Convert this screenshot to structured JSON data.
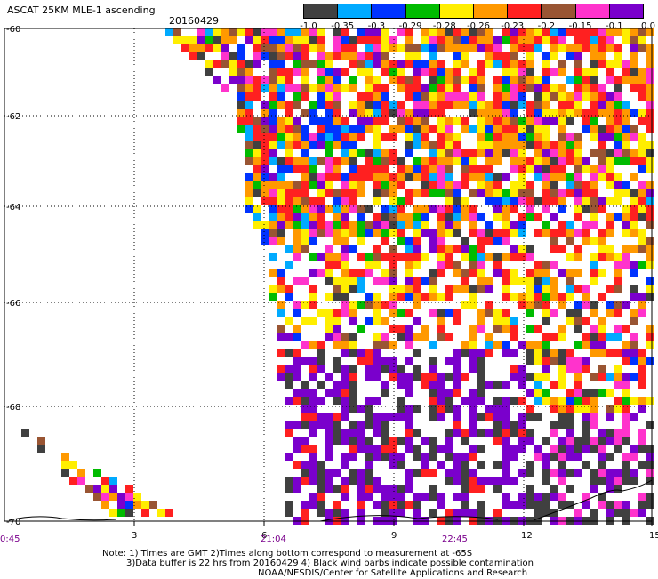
{
  "header": {
    "title": "ASCAT 25KM MLE-1 ascending",
    "date": "20160429"
  },
  "colorbar": {
    "colors": [
      "#404040",
      "#00aaff",
      "#0033ff",
      "#00bb00",
      "#ffee00",
      "#ff9900",
      "#ff2020",
      "#995533",
      "#ff33cc",
      "#7a00cc"
    ],
    "labels": [
      "-1.0",
      "-0.35",
      "-0.3",
      "-0.29",
      "-0.28",
      "-0.26",
      "-0.23",
      "-0.2",
      "-0.15",
      "-0.1",
      "0.0"
    ]
  },
  "map": {
    "y_ticks": [
      "-60",
      "-62",
      "-64",
      "-66",
      "-68",
      "-70"
    ],
    "x_ticks": [
      "3",
      "6",
      "9",
      "12",
      "15"
    ],
    "time_labels": [
      "0:45",
      "21:04",
      "22:45"
    ]
  },
  "notes": {
    "line1": "Note: 1) Times are GMT 2)Times along bottom correspond to measurement at -65S",
    "line2": "3)Data buffer is 22 hrs from 20160429 4) Black wind barbs indicate possible contamination",
    "line3": "NOAA/NESDIS/Center for Satellite Applications and Research"
  }
}
